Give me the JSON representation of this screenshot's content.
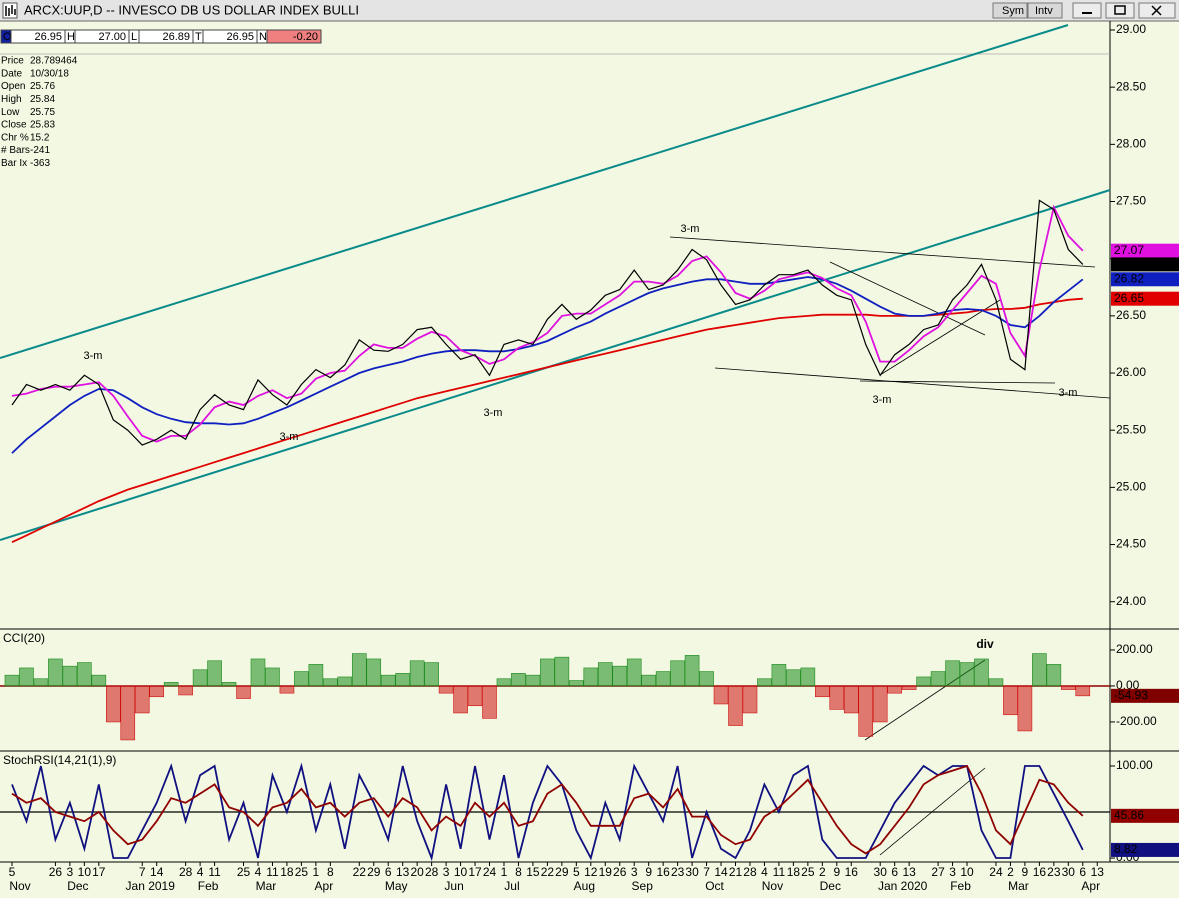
{
  "window_title": "ARCX:UUP,D -- INVESCO DB US DOLLAR INDEX BULLI",
  "buttons": [
    "Sym",
    "Intv"
  ],
  "quote": [
    {
      "label": "O",
      "value": "26.95"
    },
    {
      "label": "H",
      "value": "27.00"
    },
    {
      "label": "L",
      "value": "26.89"
    },
    {
      "label": "T",
      "value": "26.95"
    },
    {
      "label": "N",
      "value": "-0.20"
    }
  ],
  "data_window": [
    {
      "label": "Price",
      "value": "28.789464"
    },
    {
      "label": "Date",
      "value": "10/30/18"
    },
    {
      "label": "Open",
      "value": "25.76"
    },
    {
      "label": "High",
      "value": "25.84"
    },
    {
      "label": "Low",
      "value": "25.75"
    },
    {
      "label": "Close",
      "value": "25.83"
    },
    {
      "label": "Chr %",
      "value": "15.2"
    },
    {
      "label": "# Bars",
      "value": "-241"
    },
    {
      "label": "Bar Ix",
      "value": "-363"
    }
  ],
  "chart_data": [
    {
      "type": "line",
      "categories": [
        "5",
        null,
        null,
        "26",
        "3",
        "10",
        "17",
        null,
        null,
        "7",
        "14",
        null,
        "28",
        "4",
        "11",
        null,
        "25",
        "4",
        "11",
        "18",
        "25",
        "1",
        "8",
        null,
        "22",
        "29",
        "6",
        "13",
        "20",
        "28",
        "3",
        "10",
        "17",
        "24",
        "1",
        "8",
        "15",
        "22",
        "29",
        "5",
        "12",
        "19",
        "26",
        "3",
        "9",
        "16",
        "23",
        "30",
        "7",
        "14",
        "21",
        "28",
        "4",
        "11",
        "18",
        "25",
        "2",
        "9",
        "16",
        null,
        "30",
        "6",
        "13",
        null,
        "27",
        "3",
        "10",
        null,
        "24",
        "2",
        "9",
        "16",
        "23",
        "30",
        "6",
        "13"
      ],
      "months": [
        "Nov",
        null,
        null,
        null,
        "Dec",
        null,
        null,
        null,
        null,
        "Jan 2019",
        null,
        null,
        null,
        "Feb",
        null,
        null,
        null,
        "Mar",
        null,
        null,
        null,
        "Apr",
        null,
        null,
        null,
        null,
        "May",
        null,
        null,
        null,
        "Jun",
        null,
        null,
        null,
        "Jul",
        null,
        null,
        null,
        null,
        "Aug",
        null,
        null,
        null,
        "Sep",
        null,
        null,
        null,
        null,
        "Oct",
        null,
        null,
        null,
        "Nov",
        null,
        null,
        null,
        "Dec",
        null,
        null,
        null,
        null,
        "Jan 2020",
        null,
        null,
        null,
        "Feb",
        null,
        null,
        null,
        "Mar",
        null,
        null,
        null,
        null,
        "Apr",
        null
      ],
      "series": [
        {
          "color": "#e00000",
          "values": [
            24.52,
            24.58,
            24.64,
            24.7,
            24.76,
            24.82,
            24.88,
            24.93,
            24.98,
            25.02,
            25.06,
            25.1,
            25.14,
            25.18,
            25.22,
            25.26,
            25.3,
            25.34,
            25.38,
            25.42,
            25.46,
            25.5,
            25.54,
            25.58,
            25.62,
            25.66,
            25.7,
            25.74,
            25.78,
            25.81,
            25.84,
            25.87,
            25.9,
            25.93,
            25.96,
            25.99,
            26.02,
            26.05,
            26.08,
            26.11,
            26.14,
            26.17,
            26.2,
            26.23,
            26.26,
            26.29,
            26.32,
            26.35,
            26.38,
            26.4,
            26.42,
            26.44,
            26.46,
            26.48,
            26.49,
            26.5,
            26.51,
            26.51,
            26.51,
            26.51,
            26.5,
            26.5,
            26.5,
            26.5,
            26.51,
            26.52,
            26.53,
            26.55,
            26.56,
            26.56,
            26.57,
            26.6,
            26.62,
            26.64,
            26.65,
            null
          ]
        },
        {
          "color": "#1020c0",
          "values": [
            25.3,
            25.42,
            25.52,
            25.62,
            25.72,
            25.8,
            25.86,
            25.85,
            25.78,
            25.7,
            25.64,
            25.6,
            25.57,
            25.56,
            25.56,
            25.55,
            25.56,
            25.6,
            25.65,
            25.7,
            25.76,
            25.82,
            25.88,
            25.94,
            26.0,
            26.04,
            26.07,
            26.1,
            26.14,
            26.17,
            26.19,
            26.2,
            26.2,
            26.19,
            26.19,
            26.21,
            26.24,
            26.28,
            26.34,
            26.4,
            26.45,
            26.52,
            26.58,
            26.64,
            26.7,
            26.74,
            26.77,
            26.8,
            26.82,
            26.82,
            26.8,
            26.78,
            26.78,
            26.8,
            26.82,
            26.84,
            26.82,
            26.78,
            26.72,
            26.65,
            26.58,
            26.52,
            26.5,
            26.5,
            26.52,
            26.55,
            26.56,
            26.55,
            26.5,
            26.42,
            26.4,
            26.5,
            26.62,
            26.72,
            26.82,
            null
          ]
        },
        {
          "color": "#e010e0",
          "values": [
            25.8,
            25.82,
            25.86,
            25.88,
            25.88,
            25.9,
            25.92,
            25.8,
            25.62,
            25.45,
            25.4,
            25.45,
            25.45,
            25.55,
            25.7,
            25.75,
            25.72,
            25.8,
            25.85,
            25.78,
            25.82,
            25.95,
            26.0,
            26.02,
            26.15,
            26.25,
            26.22,
            26.22,
            26.3,
            26.36,
            26.32,
            26.2,
            26.15,
            26.08,
            26.12,
            26.22,
            26.27,
            26.35,
            26.5,
            26.52,
            26.52,
            26.6,
            26.68,
            26.8,
            26.8,
            26.78,
            26.85,
            26.98,
            27.02,
            26.88,
            26.7,
            26.65,
            26.72,
            26.82,
            26.85,
            26.88,
            26.83,
            26.74,
            26.68,
            26.45,
            26.1,
            26.1,
            26.2,
            26.32,
            26.4,
            26.55,
            26.7,
            26.85,
            26.78,
            26.35,
            26.15,
            26.9,
            27.45,
            27.2,
            27.07,
            null
          ]
        },
        {
          "color": "#000000",
          "values": [
            25.72,
            25.9,
            25.85,
            25.9,
            25.85,
            25.98,
            25.9,
            25.59,
            25.5,
            25.37,
            25.42,
            25.5,
            25.42,
            25.68,
            25.81,
            25.72,
            25.68,
            25.94,
            25.81,
            25.72,
            25.9,
            26.03,
            25.96,
            26.07,
            26.29,
            26.2,
            26.19,
            26.25,
            26.38,
            26.4,
            26.25,
            26.12,
            26.16,
            25.98,
            26.25,
            26.29,
            26.25,
            26.47,
            26.6,
            26.47,
            26.55,
            26.68,
            26.73,
            26.9,
            26.73,
            26.77,
            26.9,
            27.08,
            26.99,
            26.77,
            26.6,
            26.64,
            26.77,
            26.86,
            26.86,
            26.9,
            26.77,
            26.68,
            26.64,
            26.25,
            25.98,
            26.16,
            26.25,
            26.38,
            26.42,
            26.64,
            26.77,
            26.95,
            26.64,
            26.12,
            26.03,
            27.51,
            27.43,
            27.08,
            26.95,
            null
          ]
        }
      ],
      "ylim": [
        23.77,
        29.07
      ],
      "yticks": [
        {
          "value": 24,
          "label": "24.00"
        },
        {
          "value": 24.5,
          "label": "24.50"
        },
        {
          "value": 25,
          "label": "25.00"
        },
        {
          "value": 25.5,
          "label": "25.50"
        },
        {
          "value": 26,
          "label": "26.00"
        },
        {
          "value": 26.5,
          "label": "26.50"
        },
        {
          "value": 27,
          "label": "27.00"
        },
        {
          "value": 27.5,
          "label": "27.50"
        },
        {
          "value": 28,
          "label": "28.00"
        },
        {
          "value": 28.5,
          "label": "28.50"
        },
        {
          "value": 29,
          "label": "29.00"
        }
      ],
      "annotations": [
        "3-m",
        "3-m",
        "3-m",
        "3-m",
        "3-m",
        "3-m"
      ]
    },
    {
      "type": "bar",
      "title": "CCI(20)",
      "up_color": "#1a8a1a",
      "down_color": "#d01010",
      "tag_color": "#800000",
      "values": [
        60,
        100,
        40,
        150,
        110,
        130,
        60,
        -200,
        -300,
        -150,
        -60,
        20,
        -50,
        90,
        140,
        20,
        -70,
        150,
        100,
        -40,
        80,
        120,
        40,
        50,
        180,
        150,
        60,
        70,
        140,
        130,
        -40,
        -150,
        -110,
        -180,
        40,
        70,
        60,
        150,
        160,
        30,
        100,
        130,
        110,
        150,
        60,
        80,
        140,
        170,
        80,
        -100,
        -220,
        -150,
        40,
        120,
        90,
        100,
        -60,
        -130,
        -150,
        -280,
        -200,
        -40,
        -20,
        50,
        80,
        140,
        130,
        150,
        40,
        -160,
        -250,
        180,
        120,
        -20,
        -54.93,
        null
      ],
      "ylim": [
        -356,
        311
      ],
      "yticks": [
        {
          "value": 200,
          "label": "200.00"
        },
        {
          "value": 0,
          "label": "0.00"
        },
        {
          "value": -200,
          "label": "-200.00"
        }
      ],
      "annotations": [
        "div"
      ]
    },
    {
      "type": "line",
      "title": "StochRSI(14,21(1),9)",
      "series": [
        {
          "color": "#101080",
          "values": [
            80,
            40,
            100,
            20,
            60,
            10,
            80,
            0,
            0,
            30,
            60,
            100,
            40,
            90,
            100,
            20,
            60,
            0,
            90,
            50,
            100,
            30,
            80,
            10,
            90,
            60,
            20,
            100,
            40,
            0,
            80,
            10,
            100,
            20,
            90,
            0,
            60,
            100,
            80,
            30,
            0,
            60,
            20,
            100,
            70,
            40,
            100,
            0,
            50,
            10,
            0,
            30,
            80,
            50,
            90,
            100,
            20,
            0,
            0,
            0,
            30,
            60,
            80,
            100,
            90,
            100,
            100,
            30,
            0,
            0,
            100,
            100,
            70,
            40,
            8.82,
            null
          ]
        },
        {
          "color": "#900000",
          "values": [
            70,
            60,
            65,
            50,
            45,
            40,
            50,
            30,
            15,
            20,
            40,
            65,
            60,
            70,
            80,
            55,
            50,
            35,
            55,
            60,
            75,
            55,
            60,
            45,
            60,
            65,
            45,
            65,
            55,
            30,
            45,
            35,
            60,
            45,
            60,
            35,
            40,
            70,
            80,
            60,
            35,
            35,
            35,
            65,
            70,
            55,
            75,
            45,
            45,
            25,
            15,
            20,
            45,
            55,
            70,
            85,
            60,
            35,
            15,
            5,
            15,
            35,
            55,
            80,
            90,
            95,
            100,
            70,
            30,
            15,
            50,
            85,
            80,
            60,
            45.86,
            null
          ]
        }
      ],
      "ylim": [
        -4.3,
        115.2
      ],
      "yticks": [
        {
          "value": 100,
          "label": "100.00"
        },
        {
          "value": 0,
          "label": "0.00"
        }
      ]
    }
  ]
}
